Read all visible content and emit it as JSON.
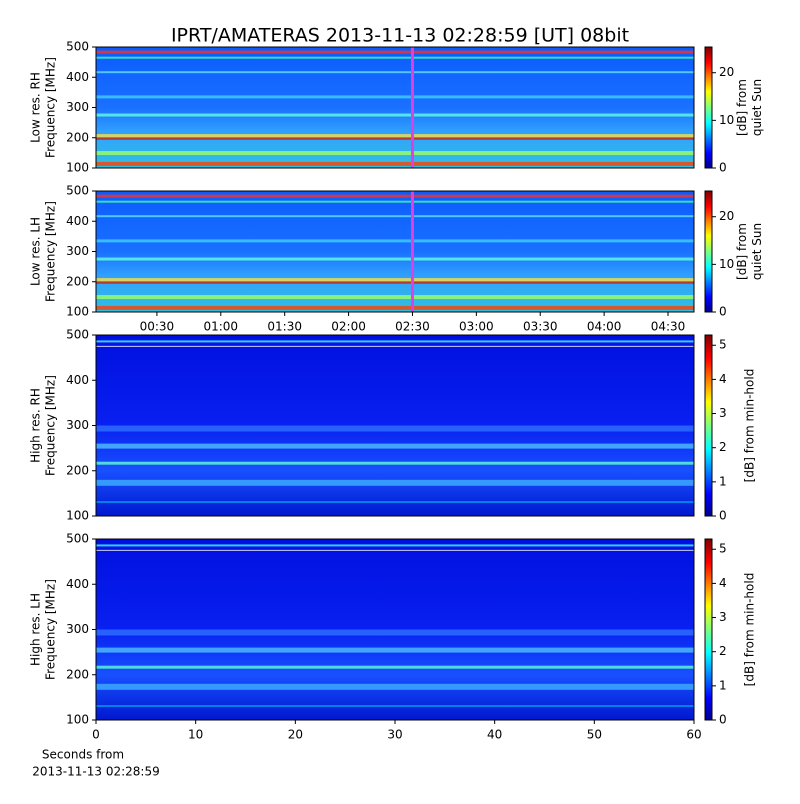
{
  "chart_data": [
    {
      "type": "spectrogram",
      "title": "IPRT/AMATERAS 2013-11-13 02:28:59 [UT]   08bit",
      "ylabel": [
        "Low res. RH",
        "Frequency [MHz]"
      ],
      "ylim": [
        100,
        500
      ],
      "yticks": [
        100,
        200,
        300,
        400,
        500
      ],
      "xlim": [
        1.4,
        282.2
      ],
      "marker": {
        "x": 150,
        "color": "#e040e0"
      },
      "colorbar": {
        "label": [
          "[dB] from",
          "quiet Sun"
        ],
        "lim": [
          0,
          25.4
        ],
        "ticks": [
          0,
          10,
          20
        ]
      }
    },
    {
      "type": "spectrogram",
      "ylabel": [
        "Low res. LH",
        "Frequency [MHz]"
      ],
      "ylim": [
        100,
        500
      ],
      "yticks": [
        100,
        200,
        300,
        400,
        500
      ],
      "xlim": [
        1.4,
        282.2
      ],
      "xticks": [
        {
          "value": 30,
          "label": "00:30"
        },
        {
          "value": 60,
          "label": "01:00"
        },
        {
          "value": 90,
          "label": "01:30"
        },
        {
          "value": 120,
          "label": "02:00"
        },
        {
          "value": 150,
          "label": "02:30"
        },
        {
          "value": 180,
          "label": "03:00"
        },
        {
          "value": 210,
          "label": "03:30"
        },
        {
          "value": 240,
          "label": "04:00"
        },
        {
          "value": 270,
          "label": "04:30"
        }
      ],
      "marker": {
        "x": 150,
        "color": "#e040e0"
      },
      "colorbar": {
        "label": [
          "[dB] from",
          "quiet Sun"
        ],
        "lim": [
          0,
          25.4
        ],
        "ticks": [
          0,
          10,
          20
        ]
      }
    },
    {
      "type": "spectrogram",
      "ylabel": [
        "High res. RH",
        "Frequency [MHz]"
      ],
      "ylim": [
        100,
        500
      ],
      "yticks": [
        100,
        200,
        300,
        400,
        500
      ],
      "xlim": [
        0,
        60
      ],
      "colorbar": {
        "label": [
          "[dB] from min-hold"
        ],
        "lim": [
          0,
          5.3
        ],
        "ticks": [
          0,
          1,
          2,
          3,
          4,
          5
        ]
      }
    },
    {
      "type": "spectrogram",
      "ylabel": [
        "High res. LH",
        "Frequency [MHz]"
      ],
      "ylim": [
        100,
        500
      ],
      "yticks": [
        100,
        200,
        300,
        400,
        500
      ],
      "xlim": [
        0,
        60
      ],
      "xticks": [
        0,
        10,
        20,
        30,
        40,
        50,
        60
      ],
      "xlabel": [
        "Seconds from",
        "2013-11-13 02:28:59"
      ],
      "colorbar": {
        "label": [
          "[dB] from min-hold"
        ],
        "lim": [
          0,
          5.3
        ],
        "ticks": [
          0,
          1,
          2,
          3,
          4,
          5
        ]
      }
    }
  ]
}
